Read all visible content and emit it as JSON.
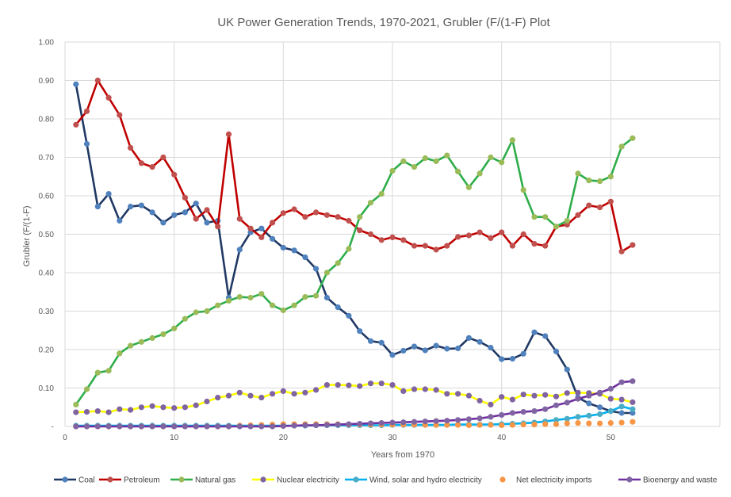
{
  "chart_data": {
    "type": "line",
    "title": "UK Power Generation Trends, 1970-2021, Grubler (F/(1-F) Plot",
    "xlabel": "Years from 1970",
    "ylabel": "Grubler (F/(1-F)",
    "xlim": [
      0,
      60
    ],
    "ylim": [
      0,
      1.0
    ],
    "x_ticks": [
      0,
      10,
      20,
      30,
      40,
      50
    ],
    "y_ticks": [
      {
        "value": 0,
        "label": "-"
      },
      {
        "value": 0.1,
        "label": "0.10"
      },
      {
        "value": 0.2,
        "label": "0.20"
      },
      {
        "value": 0.3,
        "label": "0.30"
      },
      {
        "value": 0.4,
        "label": "0.40"
      },
      {
        "value": 0.5,
        "label": "0.50"
      },
      {
        "value": 0.6,
        "label": "0.60"
      },
      {
        "value": 0.7,
        "label": "0.70"
      },
      {
        "value": 0.8,
        "label": "0.80"
      },
      {
        "value": 0.9,
        "label": "0.90"
      },
      {
        "value": 1.0,
        "label": "1.00"
      }
    ],
    "grid": true,
    "legend_position": "bottom",
    "x": [
      1,
      2,
      3,
      4,
      5,
      6,
      7,
      8,
      9,
      10,
      11,
      12,
      13,
      14,
      15,
      16,
      17,
      18,
      19,
      20,
      21,
      22,
      23,
      24,
      25,
      26,
      27,
      28,
      29,
      30,
      31,
      32,
      33,
      34,
      35,
      36,
      37,
      38,
      39,
      40,
      41,
      42,
      43,
      44,
      45,
      46,
      47,
      48,
      49,
      50,
      51,
      52
    ],
    "series": [
      {
        "name": "Coal",
        "color": "#1f3864",
        "marker_color": "#4f81bd",
        "line": true,
        "values": [
          0.89,
          0.735,
          0.572,
          0.605,
          0.535,
          0.572,
          0.575,
          0.557,
          0.53,
          0.55,
          0.557,
          0.58,
          0.53,
          0.535,
          0.335,
          0.46,
          0.505,
          0.515,
          0.488,
          0.465,
          0.458,
          0.44,
          0.41,
          0.335,
          0.31,
          0.288,
          0.248,
          0.222,
          0.218,
          0.186,
          0.197,
          0.208,
          0.198,
          0.21,
          0.202,
          0.203,
          0.23,
          0.22,
          0.205,
          0.175,
          0.176,
          0.189,
          0.245,
          0.235,
          0.195,
          0.148,
          0.075,
          0.06,
          0.05,
          0.04,
          0.035,
          0.035
        ]
      },
      {
        "name": "Petroleum",
        "color": "#c00000",
        "marker_color": "#c0504d",
        "line": true,
        "values": [
          0.785,
          0.82,
          0.9,
          0.855,
          0.81,
          0.725,
          0.685,
          0.675,
          0.7,
          0.655,
          0.595,
          0.54,
          0.563,
          0.52,
          0.76,
          0.54,
          0.515,
          0.492,
          0.53,
          0.555,
          0.565,
          0.545,
          0.557,
          0.55,
          0.545,
          0.535,
          0.51,
          0.5,
          0.485,
          0.492,
          0.485,
          0.47,
          0.47,
          0.46,
          0.47,
          0.493,
          0.497,
          0.505,
          0.49,
          0.505,
          0.47,
          0.5,
          0.475,
          0.47,
          0.52,
          0.525,
          0.55,
          0.575,
          0.57,
          0.585,
          0.455,
          0.472
        ]
      },
      {
        "name": "Natural gas",
        "color": "#2ead4a",
        "marker_color": "#9bbb59",
        "line": true,
        "values": [
          0.057,
          0.097,
          0.14,
          0.145,
          0.19,
          0.21,
          0.22,
          0.23,
          0.24,
          0.255,
          0.28,
          0.297,
          0.3,
          0.315,
          0.327,
          0.337,
          0.335,
          0.345,
          0.315,
          0.302,
          0.315,
          0.337,
          0.34,
          0.4,
          0.425,
          0.462,
          0.545,
          0.582,
          0.605,
          0.665,
          0.69,
          0.675,
          0.698,
          0.69,
          0.705,
          0.663,
          0.622,
          0.658,
          0.7,
          0.687,
          0.745,
          0.615,
          0.545,
          0.545,
          0.52,
          0.535,
          0.658,
          0.64,
          0.638,
          0.65,
          0.728,
          0.75
        ]
      },
      {
        "name": "Nuclear electricity",
        "color": "#ffff00",
        "marker_color": "#8064a2",
        "line": true,
        "values": [
          0.037,
          0.038,
          0.04,
          0.037,
          0.045,
          0.043,
          0.05,
          0.053,
          0.05,
          0.048,
          0.05,
          0.055,
          0.065,
          0.075,
          0.08,
          0.088,
          0.08,
          0.075,
          0.085,
          0.092,
          0.085,
          0.088,
          0.095,
          0.108,
          0.108,
          0.107,
          0.105,
          0.112,
          0.112,
          0.108,
          0.092,
          0.097,
          0.097,
          0.095,
          0.085,
          0.085,
          0.08,
          0.067,
          0.057,
          0.077,
          0.07,
          0.083,
          0.08,
          0.082,
          0.078,
          0.087,
          0.088,
          0.087,
          0.085,
          0.072,
          0.07,
          0.063
        ]
      },
      {
        "name": "Wind, solar and hydro electricity",
        "color": "#00b0f0",
        "marker_color": "#4bacc6",
        "line": true,
        "values": [
          0.002,
          0.002,
          0.002,
          0.002,
          0.002,
          0.002,
          0.002,
          0.002,
          0.002,
          0.002,
          0.002,
          0.002,
          0.002,
          0.002,
          0.002,
          0.002,
          0.002,
          0.002,
          0.002,
          0.002,
          0.002,
          0.002,
          0.003,
          0.003,
          0.003,
          0.003,
          0.003,
          0.003,
          0.003,
          0.004,
          0.004,
          0.004,
          0.004,
          0.004,
          0.004,
          0.005,
          0.005,
          0.005,
          0.005,
          0.006,
          0.007,
          0.008,
          0.01,
          0.013,
          0.017,
          0.02,
          0.025,
          0.028,
          0.032,
          0.04,
          0.052,
          0.045
        ]
      },
      {
        "name": "Net electricity imports",
        "color": "#f79646",
        "marker_color": "#f79646",
        "line": false,
        "values": [
          0.0,
          0.0,
          0.0,
          0.0,
          0.0,
          0.0,
          0.0,
          0.0,
          0.0,
          0.0,
          0.0,
          0.0,
          0.0,
          0.0,
          0.0,
          0.002,
          0.003,
          0.004,
          0.005,
          0.006,
          0.006,
          0.006,
          0.006,
          0.006,
          0.006,
          0.005,
          0.005,
          0.005,
          0.005,
          0.005,
          0.005,
          0.005,
          0.004,
          0.004,
          0.004,
          0.004,
          0.003,
          0.004,
          0.004,
          0.003,
          0.004,
          0.005,
          0.005,
          0.006,
          0.006,
          0.008,
          0.009,
          0.008,
          0.008,
          0.009,
          0.01,
          0.012
        ]
      },
      {
        "name": "Bioenergy and waste",
        "color": "#7030a0",
        "marker_color": "#8064a2",
        "line": true,
        "values": [
          0.0,
          0.0,
          0.0,
          0.0,
          0.0,
          0.0,
          0.0,
          0.0,
          0.0,
          0.0,
          0.0,
          0.0,
          0.0,
          0.0,
          0.0,
          0.0,
          0.0,
          0.0,
          0.0,
          0.001,
          0.002,
          0.003,
          0.003,
          0.004,
          0.005,
          0.006,
          0.007,
          0.008,
          0.009,
          0.01,
          0.011,
          0.012,
          0.013,
          0.014,
          0.015,
          0.017,
          0.019,
          0.021,
          0.025,
          0.03,
          0.035,
          0.038,
          0.04,
          0.045,
          0.055,
          0.062,
          0.072,
          0.08,
          0.088,
          0.098,
          0.115,
          0.118
        ]
      }
    ]
  }
}
